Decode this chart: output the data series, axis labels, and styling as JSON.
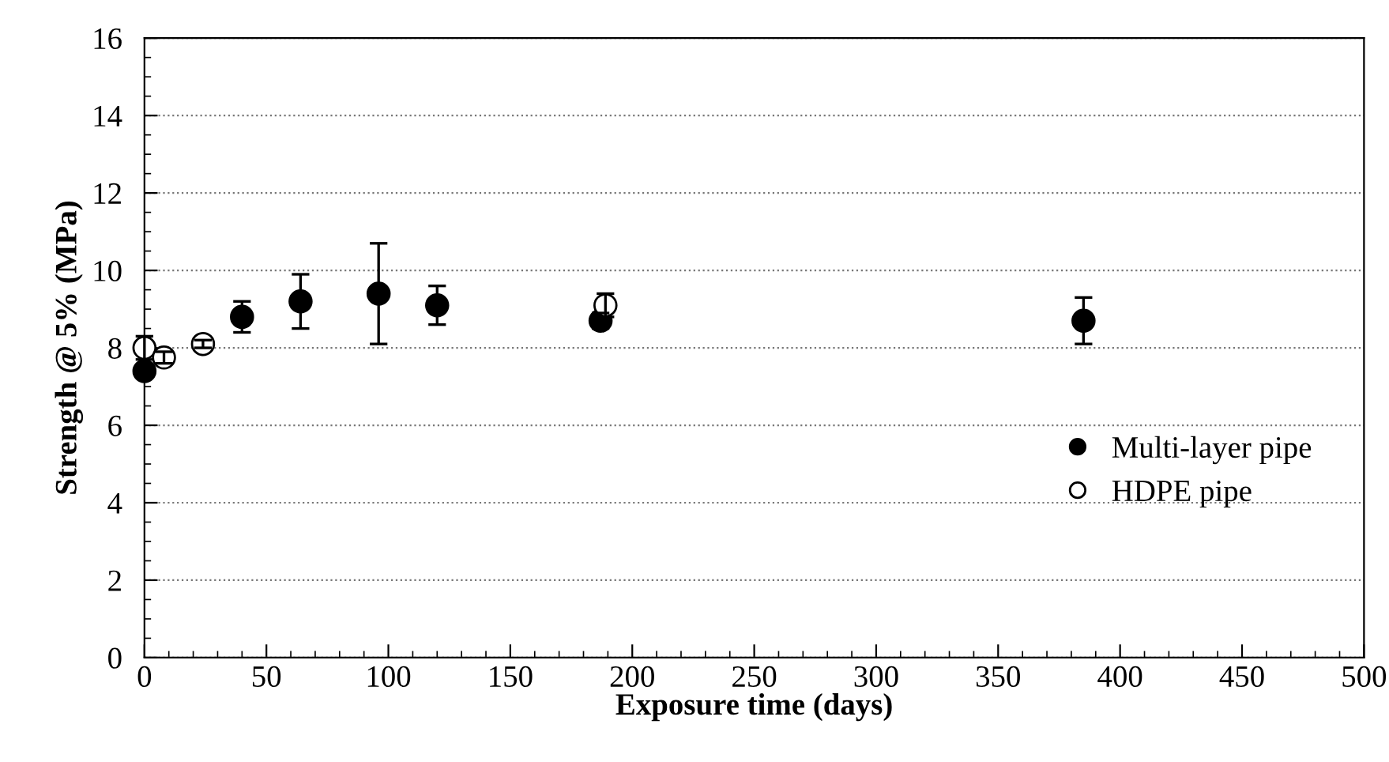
{
  "chart_data": {
    "type": "scatter",
    "xlabel": "Exposure time (days)",
    "ylabel": "Strength @ 5% (MPa)",
    "xlim": [
      0,
      500
    ],
    "xticks": [
      0,
      50,
      100,
      150,
      200,
      250,
      300,
      350,
      400,
      450,
      500
    ],
    "ylim": [
      0,
      16
    ],
    "yticks": [
      0,
      2,
      4,
      6,
      8,
      10,
      12,
      14,
      16
    ],
    "grid": "y",
    "legend": "right",
    "marker": "circle",
    "series": [
      {
        "name": "Multi-layer pipe",
        "color": "#000000",
        "x": [
          0,
          40,
          64,
          96,
          120,
          187,
          385
        ],
        "values": [
          7.4,
          8.8,
          9.2,
          9.4,
          9.1,
          8.7,
          8.7
        ],
        "errors": [
          null,
          0.4,
          0.7,
          1.3,
          0.5,
          0.2,
          0.6
        ]
      },
      {
        "name": "HDPE pipe",
        "color": "#000000",
        "x": [
          0,
          8,
          24,
          189
        ],
        "values": [
          8.0,
          7.75,
          8.1,
          9.1
        ],
        "errors": [
          0.3,
          0.15,
          0.1,
          0.3
        ]
      }
    ]
  }
}
